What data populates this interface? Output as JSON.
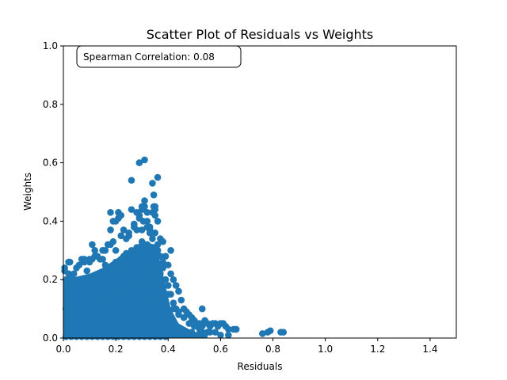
{
  "chart_data": {
    "type": "scatter",
    "title": "Scatter Plot of Residuals vs Weights",
    "xlabel": "Residuals",
    "ylabel": "Weights",
    "xlim": [
      0,
      1.5
    ],
    "ylim": [
      0,
      1.0
    ],
    "x_ticks": [
      "0.0",
      "0.2",
      "0.4",
      "0.6",
      "0.8",
      "1.0",
      "1.2",
      "1.4"
    ],
    "y_ticks": [
      "0.0",
      "0.2",
      "0.4",
      "0.6",
      "0.8",
      "1.0"
    ],
    "x_tick_values": [
      0,
      0.2,
      0.4,
      0.6,
      0.8,
      1.0,
      1.2,
      1.4
    ],
    "y_tick_values": [
      0,
      0.2,
      0.4,
      0.6,
      0.8,
      1.0
    ],
    "grid": false,
    "legend": "none",
    "point_color": "#1f77b4",
    "annotation": "Spearman Correlation: 0.08",
    "series": [
      {
        "x": [
          0.005,
          0.01,
          0.015,
          0.02,
          0.03,
          0.04,
          0.05,
          0.06,
          0.07,
          0.08,
          0.09,
          0.1,
          0.11,
          0.12,
          0.13,
          0.14,
          0.15,
          0.16,
          0.17,
          0.18,
          0.19,
          0.2,
          0.21,
          0.22,
          0.23,
          0.24,
          0.25,
          0.26,
          0.27,
          0.28,
          0.29,
          0.3,
          0.31,
          0.32,
          0.33,
          0.34,
          0.35,
          0.36,
          0.37,
          0.38,
          0.39,
          0.4,
          0.02,
          0.04,
          0.06,
          0.08,
          0.1,
          0.12,
          0.14,
          0.16,
          0.18,
          0.2,
          0.22,
          0.24,
          0.26,
          0.28,
          0.3,
          0.32,
          0.34,
          0.36,
          0.38,
          0.01,
          0.03,
          0.05,
          0.07,
          0.09,
          0.11,
          0.13,
          0.15,
          0.17,
          0.19,
          0.21,
          0.23,
          0.25,
          0.27,
          0.29,
          0.31,
          0.33,
          0.35,
          0.37,
          0.015,
          0.045,
          0.075,
          0.105,
          0.135,
          0.165,
          0.195,
          0.225,
          0.255,
          0.285,
          0.315,
          0.345,
          0.375,
          0.02,
          0.06,
          0.1,
          0.14,
          0.18,
          0.22,
          0.26,
          0.3,
          0.34,
          0.05,
          0.09,
          0.13,
          0.17,
          0.21,
          0.25,
          0.29,
          0.33,
          0.37,
          0.27,
          0.29,
          0.31,
          0.32,
          0.33,
          0.35,
          0.28,
          0.3,
          0.34,
          0.36,
          0.31,
          0.29,
          0.3,
          0.305,
          0.26,
          0.345,
          0.35,
          0.345,
          0.33,
          0.21,
          0.18,
          0.19,
          0.215,
          0.22,
          0.25,
          0.27,
          0.32,
          0.35,
          0.36,
          0.36,
          0.37,
          0.38,
          0.04,
          0.08,
          0.11,
          0.02,
          0.025,
          0.005,
          0.1,
          0.15,
          0.18,
          0.12,
          0.2,
          0.23,
          0.16,
          0.41,
          0.42,
          0.43,
          0.44,
          0.45,
          0.46,
          0.47,
          0.48,
          0.49,
          0.5,
          0.51,
          0.52,
          0.53,
          0.54,
          0.55,
          0.56,
          0.57,
          0.58,
          0.59,
          0.6,
          0.61,
          0.62,
          0.63,
          0.65,
          0.66,
          0.41,
          0.42,
          0.43,
          0.44,
          0.46,
          0.48,
          0.5,
          0.52,
          0.55,
          0.58,
          0.41,
          0.43,
          0.45,
          0.47,
          0.49,
          0.51,
          0.53,
          0.56,
          0.6,
          0.63,
          0.76,
          0.78,
          0.79,
          0.83,
          0.84,
          0.53,
          0.42,
          0.44,
          0.41,
          0.4,
          0.4,
          0.39,
          0.38,
          0.38,
          0.39,
          0.37,
          0.01,
          0.02,
          0.03,
          0.04,
          0.05,
          0.06,
          0.07,
          0.08,
          0.09,
          0.1,
          0.11,
          0.12,
          0.13,
          0.14,
          0.15,
          0.16,
          0.17,
          0.18,
          0.19,
          0.2,
          0.21,
          0.22,
          0.23,
          0.24,
          0.25,
          0.26,
          0.27,
          0.28,
          0.29,
          0.3,
          0.31,
          0.32,
          0.33,
          0.34,
          0.35,
          0.36,
          0.37,
          0.38,
          0.39,
          0.4
        ],
        "y": [
          0.23,
          0.2,
          0.18,
          0.22,
          0.21,
          0.19,
          0.24,
          0.25,
          0.27,
          0.26,
          0.23,
          0.27,
          0.32,
          0.3,
          0.28,
          0.27,
          0.27,
          0.3,
          0.32,
          0.37,
          0.33,
          0.4,
          0.43,
          0.35,
          0.37,
          0.34,
          0.35,
          0.44,
          0.39,
          0.37,
          0.42,
          0.44,
          0.45,
          0.4,
          0.37,
          0.43,
          0.45,
          0.4,
          0.34,
          0.33,
          0.28,
          0.25,
          0.15,
          0.16,
          0.17,
          0.18,
          0.19,
          0.2,
          0.22,
          0.21,
          0.24,
          0.26,
          0.27,
          0.29,
          0.3,
          0.31,
          0.33,
          0.32,
          0.34,
          0.3,
          0.26,
          0.1,
          0.11,
          0.12,
          0.13,
          0.14,
          0.15,
          0.16,
          0.17,
          0.18,
          0.19,
          0.2,
          0.21,
          0.22,
          0.23,
          0.24,
          0.25,
          0.26,
          0.27,
          0.22,
          0.05,
          0.06,
          0.07,
          0.08,
          0.09,
          0.1,
          0.11,
          0.12,
          0.13,
          0.14,
          0.15,
          0.16,
          0.17,
          0.02,
          0.03,
          0.04,
          0.05,
          0.06,
          0.07,
          0.08,
          0.09,
          0.1,
          0.01,
          0.02,
          0.02,
          0.03,
          0.03,
          0.04,
          0.04,
          0.05,
          0.06,
          0.38,
          0.6,
          0.61,
          0.43,
          0.36,
          0.42,
          0.43,
          0.45,
          0.53,
          0.55,
          0.47,
          0.41,
          0.37,
          0.4,
          0.54,
          0.49,
          0.44,
          0.45,
          0.38,
          0.41,
          0.43,
          0.4,
          0.42,
          0.42,
          0.36,
          0.39,
          0.38,
          0.36,
          0.32,
          0.3,
          0.28,
          0.24,
          0.22,
          0.27,
          0.27,
          0.26,
          0.26,
          0.24,
          0.26,
          0.3,
          0.32,
          0.28,
          0.3,
          0.28,
          0.25,
          0.3,
          0.2,
          0.18,
          0.16,
          0.13,
          0.1,
          0.09,
          0.08,
          0.07,
          0.06,
          0.05,
          0.05,
          0.04,
          0.06,
          0.05,
          0.04,
          0.05,
          0.05,
          0.04,
          0.05,
          0.05,
          0.04,
          0.03,
          0.03,
          0.03,
          0.15,
          0.12,
          0.1,
          0.08,
          0.07,
          0.05,
          0.04,
          0.03,
          0.02,
          0.02,
          0.06,
          0.04,
          0.03,
          0.02,
          0.02,
          0.01,
          0.02,
          0.02,
          0.01,
          0.01,
          0.015,
          0.02,
          0.025,
          0.02,
          0.02,
          0.1,
          0.1,
          0.09,
          0.22,
          0.18,
          0.15,
          0.2,
          0.16,
          0.12,
          0.1,
          0.08,
          0.005,
          0.01,
          0.005,
          0.01,
          0.005,
          0.01,
          0.005,
          0.01,
          0.005,
          0.01,
          0.005,
          0.01,
          0.005,
          0.01,
          0.005,
          0.01,
          0.005,
          0.01,
          0.005,
          0.01,
          0.005,
          0.01,
          0.005,
          0.01,
          0.005,
          0.01,
          0.005,
          0.01,
          0.005,
          0.01,
          0.005,
          0.01,
          0.005,
          0.01,
          0.005,
          0.01,
          0.005,
          0.01,
          0.005,
          0.01
        ]
      }
    ]
  }
}
